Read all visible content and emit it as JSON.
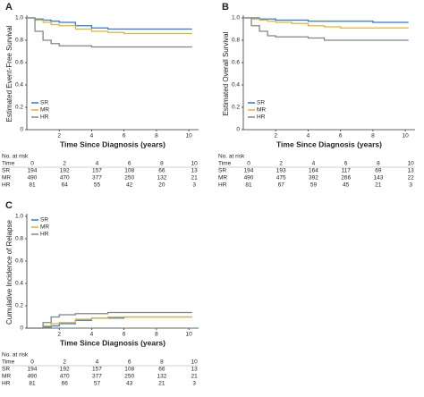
{
  "chart_data": [
    {
      "type": "line",
      "step": true,
      "panel_label": "A",
      "y_label": "Estimated Event-Free Survival",
      "x_label": "Time Since Diagnosis (years)",
      "x": [
        0,
        0.5,
        1,
        1.5,
        2,
        3,
        4,
        5,
        6,
        8,
        10.2
      ],
      "series": [
        {
          "name": "SR",
          "color": "#2b7bd6",
          "values": [
            1,
            0.99,
            0.98,
            0.97,
            0.96,
            0.93,
            0.91,
            0.9,
            0.9,
            0.9,
            0.9
          ]
        },
        {
          "name": "MR",
          "color": "#e6b42c",
          "values": [
            1,
            0.98,
            0.96,
            0.94,
            0.93,
            0.9,
            0.88,
            0.87,
            0.86,
            0.86,
            0.86
          ]
        },
        {
          "name": "HR",
          "color": "#7d8a87",
          "values": [
            1,
            0.88,
            0.8,
            0.77,
            0.75,
            0.75,
            0.74,
            0.74,
            0.74,
            0.74,
            0.74
          ]
        }
      ],
      "xlim": [
        0,
        10.6
      ],
      "xticks": [
        2,
        4,
        6,
        8,
        10
      ],
      "ylim": [
        0,
        1
      ],
      "yticks": [
        0,
        {
          "value": 0.2,
          "label": "0.2"
        },
        {
          "value": 0.4,
          "label": "0.4"
        },
        {
          "value": 0.6,
          "label": "0.6"
        },
        {
          "value": 0.8,
          "label": "0.8"
        },
        {
          "value": 1,
          "label": "1.0"
        }
      ],
      "legend": "bottom-left",
      "risk_table": {
        "title": "No. at risk",
        "header": "Time",
        "times": [
          0,
          2,
          4,
          6,
          8,
          10
        ],
        "rows": [
          {
            "name": "SR",
            "counts": [
              194,
              192,
              157,
              108,
              66,
              13
            ]
          },
          {
            "name": "MR",
            "counts": [
              490,
              470,
              377,
              250,
              132,
              21
            ]
          },
          {
            "name": "HR",
            "counts": [
              81,
              64,
              55,
              42,
              20,
              3
            ]
          }
        ]
      }
    },
    {
      "type": "line",
      "step": true,
      "panel_label": "B",
      "y_label": "Estimated Overall Survival",
      "x_label": "Time Since Diagnosis (years)",
      "x": [
        0,
        0.5,
        1,
        1.5,
        2,
        3,
        4,
        5,
        6,
        8,
        10.2
      ],
      "series": [
        {
          "name": "SR",
          "color": "#2b7bd6",
          "values": [
            1,
            1,
            0.99,
            0.99,
            0.98,
            0.98,
            0.97,
            0.97,
            0.97,
            0.96,
            0.96
          ]
        },
        {
          "name": "MR",
          "color": "#e6b42c",
          "values": [
            1,
            0.99,
            0.98,
            0.97,
            0.96,
            0.95,
            0.93,
            0.92,
            0.91,
            0.91,
            0.91
          ]
        },
        {
          "name": "HR",
          "color": "#7d8a87",
          "values": [
            1,
            0.93,
            0.88,
            0.84,
            0.83,
            0.83,
            0.82,
            0.8,
            0.8,
            0.8,
            0.8
          ]
        }
      ],
      "xlim": [
        0,
        10.6
      ],
      "xticks": [
        2,
        4,
        6,
        8,
        10
      ],
      "ylim": [
        0,
        1
      ],
      "yticks": [
        0,
        {
          "value": 0.2,
          "label": "0.2"
        },
        {
          "value": 0.4,
          "label": "0.4"
        },
        {
          "value": 0.6,
          "label": "0.6"
        },
        {
          "value": 0.8,
          "label": "0.8"
        },
        {
          "value": 1,
          "label": "1.0"
        }
      ],
      "legend": "bottom-left",
      "risk_table": {
        "title": "No. at risk",
        "header": "Time",
        "times": [
          0,
          2,
          4,
          6,
          8,
          10
        ],
        "rows": [
          {
            "name": "SR",
            "counts": [
              194,
              193,
              164,
              117,
              69,
              13
            ]
          },
          {
            "name": "MR",
            "counts": [
              490,
              475,
              392,
              266,
              143,
              22
            ]
          },
          {
            "name": "HR",
            "counts": [
              81,
              67,
              59,
              45,
              21,
              3
            ]
          }
        ]
      }
    },
    {
      "type": "line",
      "step": true,
      "panel_label": "C",
      "y_label": "Cumulative Incidence of Relapse",
      "x_label": "Time Since Diagnosis (years)",
      "x": [
        0,
        0.5,
        1,
        1.5,
        2,
        3,
        4,
        5,
        6,
        8,
        10.2
      ],
      "series": [
        {
          "name": "SR",
          "color": "#2b7bd6",
          "values": [
            0,
            0,
            0.01,
            0.02,
            0.04,
            0.07,
            0.09,
            0.09,
            0.1,
            0.1,
            0.1
          ]
        },
        {
          "name": "MR",
          "color": "#e6b42c",
          "values": [
            0,
            0,
            0.02,
            0.04,
            0.05,
            0.08,
            0.09,
            0.1,
            0.1,
            0.1,
            0.1
          ]
        },
        {
          "name": "HR",
          "color": "#7d8a87",
          "values": [
            0,
            0,
            0.05,
            0.1,
            0.12,
            0.13,
            0.13,
            0.14,
            0.14,
            0.14,
            0.14
          ]
        }
      ],
      "xlim": [
        0,
        10.6
      ],
      "xticks": [
        2,
        4,
        6,
        8,
        10
      ],
      "ylim": [
        0,
        1
      ],
      "yticks": [
        0,
        {
          "value": 0.2,
          "label": "0.2"
        },
        {
          "value": 0.4,
          "label": "0.4"
        },
        {
          "value": 0.6,
          "label": "0.6"
        },
        {
          "value": 0.8,
          "label": "0.8"
        },
        {
          "value": 1,
          "label": "1.0"
        }
      ],
      "legend": "top-left",
      "risk_table": {
        "title": "No. at risk",
        "header": "Time",
        "times": [
          0,
          2,
          4,
          6,
          8,
          10
        ],
        "rows": [
          {
            "name": "SR",
            "counts": [
              194,
              192,
              157,
              108,
              66,
              13
            ]
          },
          {
            "name": "MR",
            "counts": [
              490,
              470,
              377,
              250,
              132,
              21
            ]
          },
          {
            "name": "HR",
            "counts": [
              81,
              66,
              57,
              43,
              21,
              3
            ]
          }
        ]
      }
    }
  ]
}
